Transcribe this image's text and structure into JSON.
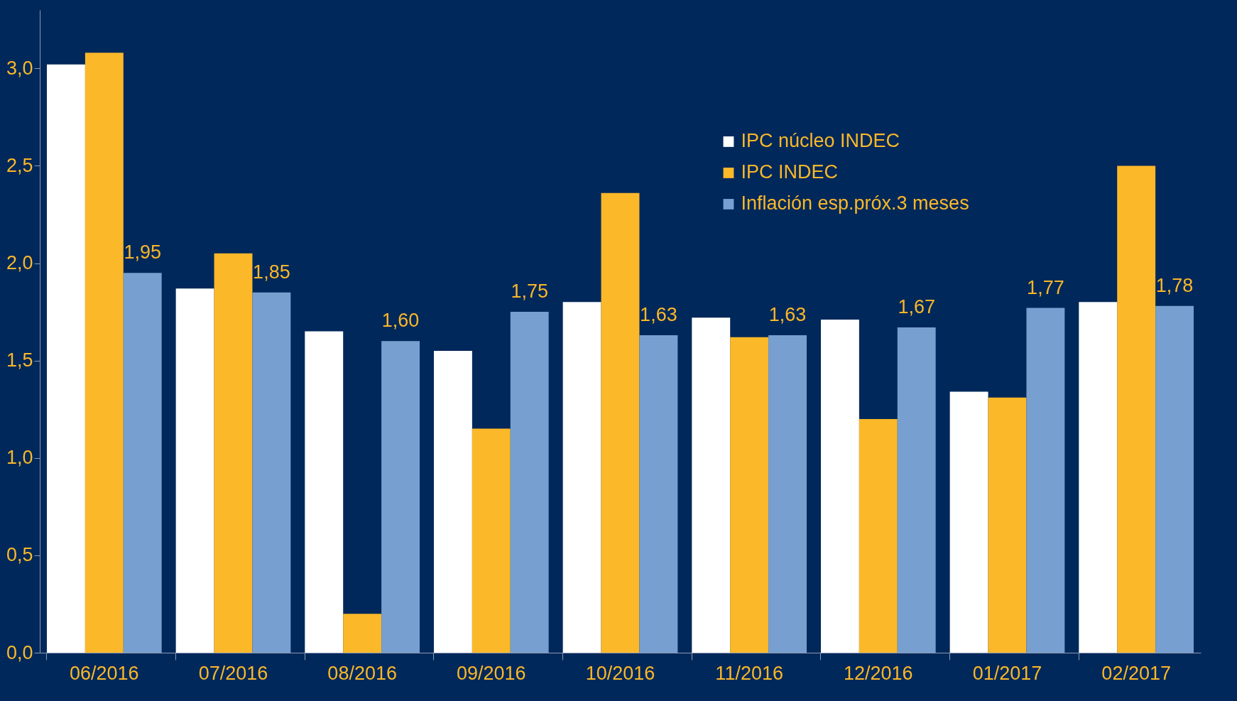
{
  "chart_data": {
    "type": "bar",
    "categories": [
      "06/2016",
      "07/2016",
      "08/2016",
      "09/2016",
      "10/2016",
      "11/2016",
      "12/2016",
      "01/2017",
      "02/2017"
    ],
    "series": [
      {
        "name": "IPC núcleo INDEC",
        "color": "#ffffff",
        "values": [
          3.02,
          1.87,
          1.65,
          1.55,
          1.8,
          1.72,
          1.71,
          1.34,
          1.8
        ]
      },
      {
        "name": "IPC INDEC",
        "color": "#fbb829",
        "values": [
          3.08,
          2.05,
          0.2,
          1.15,
          2.36,
          1.62,
          1.2,
          1.31,
          2.5
        ]
      },
      {
        "name": "Inflación esp.próx.3 meses",
        "color": "#779fcf",
        "values": [
          1.95,
          1.85,
          1.6,
          1.75,
          1.63,
          1.63,
          1.67,
          1.77,
          1.78
        ],
        "value_labels": [
          "1,95",
          "1,85",
          "1,60",
          "1,75",
          "1,63",
          "1,63",
          "1,67",
          "1,77",
          "1,78"
        ]
      }
    ],
    "ylim": [
      0,
      3.3
    ],
    "yticks": [
      {
        "value": 0,
        "label": "0,0"
      },
      {
        "value": 0.5,
        "label": "0,5"
      },
      {
        "value": 1,
        "label": "1,0"
      },
      {
        "value": 1.5,
        "label": "1,5"
      },
      {
        "value": 2,
        "label": "2,0"
      },
      {
        "value": 2.5,
        "label": "2,5"
      },
      {
        "value": 3,
        "label": "3,0"
      }
    ],
    "grid": false,
    "legend": "top right"
  }
}
